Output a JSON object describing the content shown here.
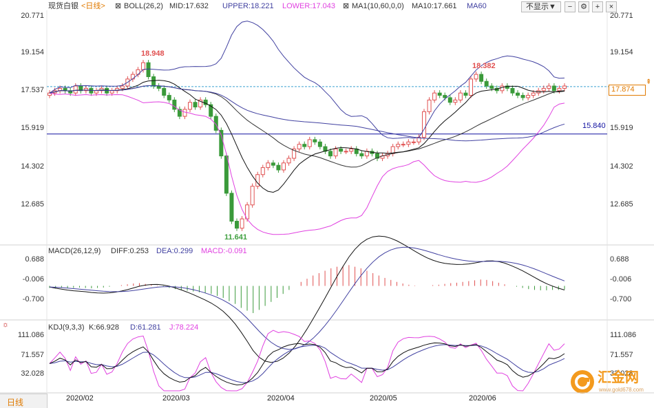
{
  "header": {
    "instrument": "现货白银",
    "timeframe_link": "<日线>",
    "boll_label": "BOLL(26,2)",
    "mid_label": "MID:17.632",
    "upper_label": "UPPER:18.221",
    "lower_label": "LOWER:17.043",
    "ma_label": "MA1(10,60,0,0)",
    "ma10_label": "MA10:17.661",
    "ma60_label": "MA60",
    "hide_button": "不显示▼",
    "colors": {
      "upper": "#4040a0",
      "mid": "#333333",
      "lower": "#e040e0",
      "ma10": "#333333",
      "ma60": "#4040a0",
      "instrument": "#333333",
      "link": "#e07a00"
    }
  },
  "price_axis": {
    "ticks": [
      "20.771",
      "19.154",
      "17.537",
      "15.919",
      "14.302",
      "12.685"
    ]
  },
  "annotations": {
    "high1": "18.948",
    "low1": "11.641",
    "high2": "18.382",
    "support_line": "15.840",
    "current_price": "17.874"
  },
  "macd_panel": {
    "label": "MACD(26,12,9)",
    "diff": "DIFF:0.253",
    "dea": "DEA:0.299",
    "macd": "MACD:-0.091",
    "ticks": [
      "0.688",
      "-0.006",
      "-0.700"
    ]
  },
  "kdj_panel": {
    "label": "KDJ(9,3,3)",
    "k": "K:66.928",
    "d": "D:61.281",
    "j": "J:78.224",
    "ticks": [
      "111.086",
      "71.557",
      "32.028"
    ]
  },
  "x_axis": {
    "dates": [
      "2020/02",
      "2020/03",
      "2020/04",
      "2020/05",
      "2020/06"
    ]
  },
  "footer": {
    "timeframe": "日线"
  },
  "watermark": {
    "brand": "汇金网",
    "url": "www.gold678.com"
  },
  "chart_data": [
    {
      "type": "candlestick",
      "title": "现货白银",
      "x": [
        "2020/02",
        "2020/03",
        "2020/04",
        "2020/05",
        "2020/06"
      ],
      "ylim": [
        11.2,
        21.0
      ],
      "close_approx": [
        17.6,
        17.7,
        17.8,
        17.7,
        17.6,
        17.9,
        17.7,
        17.8,
        17.6,
        17.7,
        17.8,
        17.6,
        17.7,
        17.8,
        17.9,
        18.2,
        18.4,
        18.6,
        18.9,
        18.3,
        17.9,
        17.8,
        17.5,
        17.3,
        16.9,
        16.6,
        16.9,
        17.2,
        17.0,
        17.3,
        17.1,
        16.6,
        16.0,
        14.9,
        13.3,
        12.1,
        11.8,
        12.2,
        12.8,
        13.6,
        14.1,
        14.4,
        14.6,
        14.5,
        14.3,
        14.6,
        14.8,
        15.2,
        15.4,
        15.3,
        15.6,
        15.5,
        15.3,
        15.1,
        14.9,
        15.2,
        15.1,
        15.1,
        15.2,
        15.0,
        14.9,
        15.1,
        15.0,
        14.8,
        14.9,
        15.0,
        15.3,
        15.4,
        15.4,
        15.5,
        15.5,
        15.7,
        16.8,
        17.3,
        17.6,
        17.5,
        17.4,
        17.2,
        17.3,
        17.6,
        17.5,
        18.2,
        18.4,
        18.1,
        17.9,
        17.8,
        17.7,
        17.9,
        17.8,
        17.6,
        17.5,
        17.4,
        17.5,
        17.6,
        17.7,
        17.8,
        17.9,
        17.7,
        17.8,
        17.9
      ],
      "series": [
        {
          "name": "UPPER",
          "last": 18.221
        },
        {
          "name": "MID",
          "last": 17.632
        },
        {
          "name": "LOWER",
          "last": 17.043
        },
        {
          "name": "MA10",
          "last": 17.661
        },
        {
          "name": "MA60",
          "last": 16.4
        }
      ],
      "annotations": {
        "high": 18.948,
        "low": 11.641,
        "high2": 18.382,
        "hline": 15.84,
        "last": 17.874
      }
    },
    {
      "type": "bar",
      "title": "MACD(26,12,9)",
      "ylim": [
        -0.8,
        0.75
      ],
      "series": [
        {
          "name": "DIFF",
          "last": 0.253
        },
        {
          "name": "DEA",
          "last": 0.299
        },
        {
          "name": "MACD",
          "last": -0.091
        }
      ],
      "macd_values": [
        -0.05,
        -0.06,
        -0.05,
        -0.06,
        -0.05,
        -0.04,
        -0.05,
        -0.06,
        -0.05,
        -0.04,
        -0.02,
        0.0,
        0.02,
        0.04,
        0.06,
        0.07,
        0.05,
        0.03,
        0.01,
        -0.02,
        -0.05,
        -0.08,
        -0.1,
        -0.12,
        -0.14,
        -0.16,
        -0.18,
        -0.2,
        -0.25,
        -0.3,
        -0.38,
        -0.45,
        -0.55,
        -0.62,
        -0.68,
        -0.6,
        -0.5,
        -0.4,
        -0.3,
        -0.2,
        -0.1,
        0.0,
        0.1,
        0.18,
        0.26,
        0.32,
        0.38,
        0.44,
        0.48,
        0.5,
        0.52,
        0.48,
        0.44,
        0.38,
        0.32,
        0.26,
        0.2,
        0.15,
        0.1,
        0.06,
        0.03,
        0.01,
        0.0,
        0.0,
        0.02,
        0.03,
        0.05,
        0.07,
        0.08,
        0.1,
        0.12,
        0.14,
        0.16,
        0.15,
        0.12,
        0.08,
        0.04,
        0.0,
        -0.02,
        -0.05,
        -0.08,
        -0.1,
        -0.11,
        -0.11,
        -0.1,
        -0.1,
        -0.09
      ]
    },
    {
      "type": "line",
      "title": "KDJ(9,3,3)",
      "ylim": [
        -5,
        120
      ],
      "series": [
        {
          "name": "K",
          "last": 66.928
        },
        {
          "name": "D",
          "last": 61.281
        },
        {
          "name": "J",
          "last": 78.224
        }
      ]
    }
  ]
}
